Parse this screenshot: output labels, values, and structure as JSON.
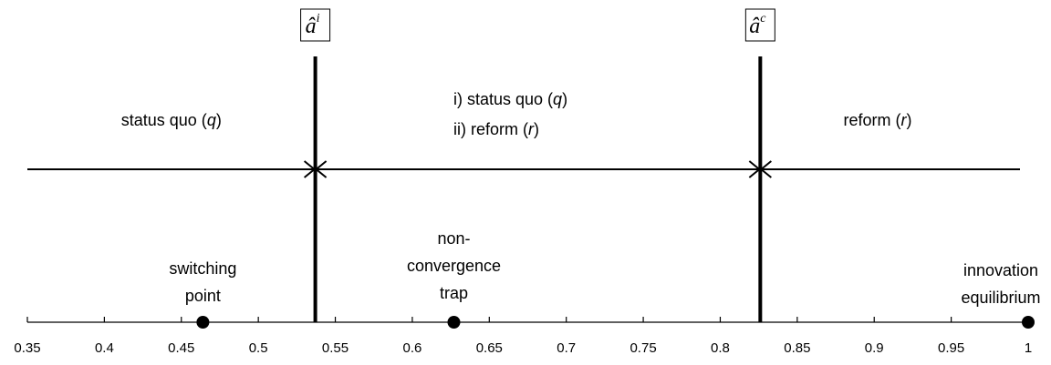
{
  "axis": {
    "xlim": [
      0.35,
      1
    ],
    "xticks": [
      0.35,
      0.4,
      0.45,
      0.5,
      0.55,
      0.6,
      0.65,
      0.7,
      0.75,
      0.8,
      0.85,
      0.9,
      0.95,
      1
    ]
  },
  "thresholds": [
    {
      "symbol": "â",
      "superscript": "i",
      "value": 0.537
    },
    {
      "symbol": "â",
      "superscript": "c",
      "value": 0.826
    }
  ],
  "regions": [
    {
      "lines": [
        [
          "status quo (",
          "q",
          ")"
        ]
      ]
    },
    {
      "lines": [
        [
          "i) status quo (",
          "q",
          ")"
        ],
        [
          "ii) reform (",
          "r",
          ")"
        ]
      ]
    },
    {
      "lines": [
        [
          "reform (",
          "r",
          ")"
        ]
      ]
    }
  ],
  "points": [
    {
      "label": [
        "switching",
        "point"
      ],
      "value": 0.464
    },
    {
      "label": [
        "non-",
        "convergence",
        "trap"
      ],
      "value": 0.627
    },
    {
      "label": [
        "innovation",
        "equilibrium"
      ],
      "value": 1
    }
  ]
}
